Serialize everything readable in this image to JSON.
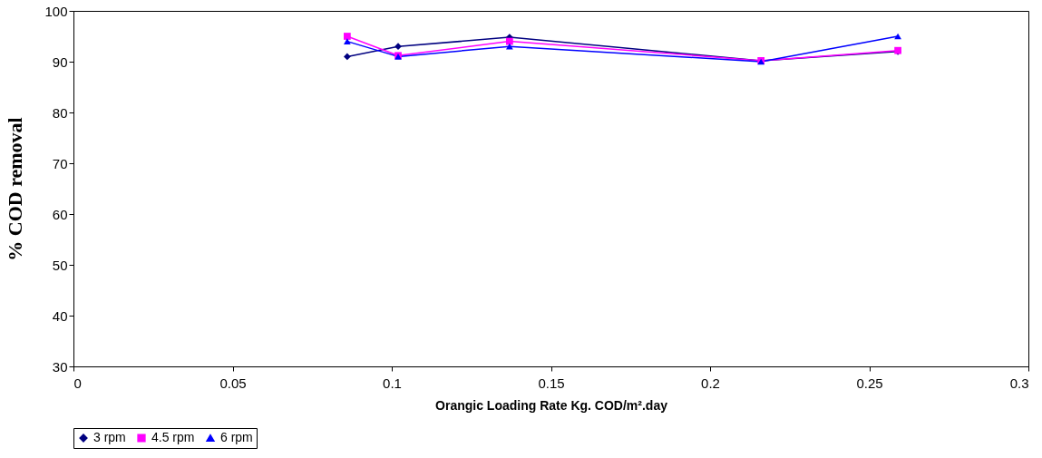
{
  "chart_data": {
    "type": "line",
    "xlabel": "Orangic Loading Rate Kg. COD/m².day",
    "ylabel": "% COD removal",
    "x": [
      0.086,
      0.102,
      0.137,
      0.216,
      0.259
    ],
    "series": [
      {
        "name": "3 rpm",
        "color": "#000080",
        "marker": "diamond",
        "values": [
          91,
          93,
          94.8,
          90.2,
          92
        ]
      },
      {
        "name": "4.5 rpm",
        "color": "#ff00ff",
        "marker": "square",
        "values": [
          95,
          91.2,
          94,
          90.2,
          92.2
        ]
      },
      {
        "name": "6 rpm",
        "color": "#0000ff",
        "marker": "triangle",
        "values": [
          94,
          91,
          93,
          90,
          95
        ]
      }
    ],
    "xlim": [
      0,
      0.3
    ],
    "xticks": [
      0,
      0.05,
      0.1,
      0.15,
      0.2,
      0.25,
      0.3
    ],
    "ylim": [
      30,
      100
    ],
    "yticks": [
      30,
      40,
      50,
      60,
      70,
      80,
      90,
      100
    ],
    "grid": false,
    "legend": "bottom",
    "line_style": "solid"
  }
}
